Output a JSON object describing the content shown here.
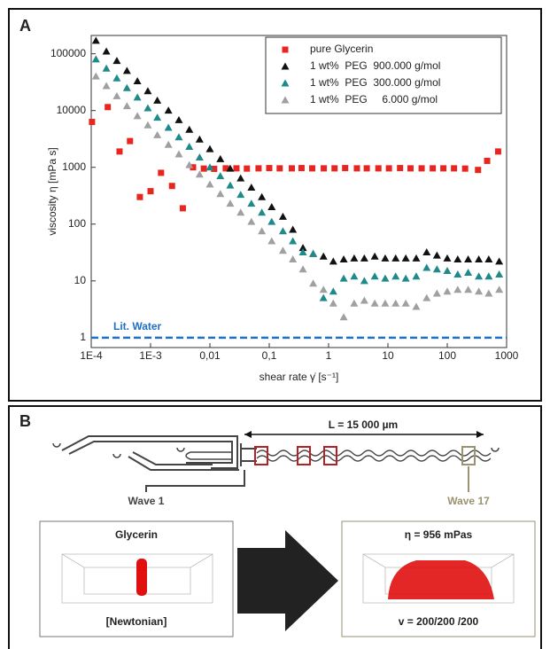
{
  "panels": {
    "a_label": "A",
    "b_label": "B"
  },
  "chart_data": {
    "type": "scatter",
    "log_x": true,
    "log_y": true,
    "grid": false,
    "legend_position": "top-right",
    "y_label": "viscosity η [mPa s]",
    "x_label": "shear rate γ̇ [s⁻¹]",
    "xlim": [
      0.0001,
      1000
    ],
    "ylim": [
      0.67,
      210000
    ],
    "xticks": [
      {
        "value": 0.0001,
        "label": "1E-4"
      },
      {
        "value": 0.001,
        "label": "1E-3"
      },
      {
        "value": 0.01,
        "label": "0,01"
      },
      {
        "value": 0.1,
        "label": "0,1"
      },
      1,
      10,
      100,
      1000
    ],
    "yticks": [
      1,
      10,
      100,
      1000,
      10000,
      100000
    ],
    "reference_line": {
      "value": 1,
      "label": "Lit. Water",
      "color": "#1f6fc4"
    },
    "series": [
      {
        "name": "pure Glycerin",
        "marker": "square",
        "color": "#e8261f",
        "x": [
          0.000103,
          0.00019,
          0.0003,
          0.00045,
          0.00066,
          0.001,
          0.0015,
          0.0023,
          0.0035,
          0.0052,
          0.0079,
          0.0118,
          0.0185,
          0.028,
          0.042,
          0.066,
          0.1,
          0.15,
          0.24,
          0.35,
          0.53,
          0.83,
          1.26,
          1.9,
          3,
          4.4,
          6.9,
          10.4,
          16,
          24,
          37,
          57,
          86,
          130,
          200,
          330,
          470,
          720
        ],
        "values": [
          6300,
          11500,
          1900,
          2900,
          300,
          380,
          800,
          470,
          190,
          1000,
          950,
          940,
          960,
          960,
          950,
          960,
          970,
          960,
          960,
          970,
          960,
          960,
          960,
          970,
          960,
          960,
          960,
          960,
          970,
          960,
          960,
          960,
          960,
          960,
          950,
          900,
          1300,
          1900
        ]
      },
      {
        "name": "1 wt%  PEG  900.000 g/mol",
        "marker": "triangle",
        "color": "#111111",
        "x": [
          0.00012,
          0.00018,
          0.00027,
          0.0004,
          0.0006,
          0.0009,
          0.0013,
          0.002,
          0.003,
          0.0045,
          0.0067,
          0.01,
          0.015,
          0.022,
          0.033,
          0.05,
          0.075,
          0.11,
          0.17,
          0.25,
          0.37,
          0.55,
          0.82,
          1.2,
          1.8,
          2.7,
          4,
          6,
          9,
          13.5,
          20,
          30,
          45,
          67,
          100,
          150,
          225,
          340,
          500,
          750
        ],
        "values": [
          170000,
          110000,
          75000,
          50000,
          33000,
          22000,
          15000,
          10000,
          6800,
          4600,
          3100,
          2100,
          1400,
          950,
          640,
          440,
          300,
          200,
          135,
          80,
          38,
          30,
          27,
          22,
          24,
          25,
          25,
          27,
          25,
          25,
          25,
          25,
          32,
          28,
          25,
          24,
          24,
          24,
          24,
          22
        ]
      },
      {
        "name": "1 wt%  PEG  300.000 g/mol",
        "marker": "triangle",
        "color": "#1f8a8a",
        "x": [
          0.00012,
          0.00018,
          0.00027,
          0.0004,
          0.0006,
          0.0009,
          0.0013,
          0.002,
          0.003,
          0.0045,
          0.0067,
          0.01,
          0.015,
          0.022,
          0.033,
          0.05,
          0.075,
          0.11,
          0.17,
          0.25,
          0.37,
          0.55,
          0.82,
          1.2,
          1.8,
          2.7,
          4,
          6,
          9,
          13.5,
          20,
          30,
          45,
          67,
          100,
          150,
          225,
          340,
          500,
          750
        ],
        "values": [
          80000,
          55000,
          37000,
          25000,
          17000,
          11000,
          7500,
          5000,
          3400,
          2300,
          1500,
          1000,
          700,
          480,
          330,
          230,
          160,
          110,
          75,
          50,
          32,
          30,
          5,
          6.5,
          11,
          12,
          10,
          12,
          11,
          12,
          11,
          12,
          17,
          16,
          15,
          13,
          14,
          12,
          12,
          13
        ]
      },
      {
        "name": "1 wt%  PEG     6.000 g/mol",
        "marker": "triangle",
        "color": "#a0a0a0",
        "x": [
          0.00012,
          0.00018,
          0.00027,
          0.0004,
          0.0006,
          0.0009,
          0.0013,
          0.002,
          0.003,
          0.0045,
          0.0067,
          0.01,
          0.015,
          0.022,
          0.033,
          0.05,
          0.075,
          0.11,
          0.17,
          0.25,
          0.37,
          0.55,
          0.82,
          1.2,
          1.8,
          2.7,
          4,
          6,
          9,
          13.5,
          20,
          30,
          45,
          67,
          100,
          150,
          225,
          340,
          500,
          750
        ],
        "values": [
          40000,
          27000,
          18000,
          12000,
          8000,
          5500,
          3700,
          2500,
          1700,
          1100,
          750,
          500,
          340,
          230,
          160,
          110,
          75,
          50,
          34,
          24,
          16,
          9,
          7,
          4,
          2.3,
          4,
          4.5,
          4,
          4,
          4,
          4,
          3.5,
          5,
          6,
          6.5,
          7,
          7,
          6.5,
          6,
          7
        ]
      }
    ]
  },
  "diagram": {
    "length_label": "L = 15 000 µm",
    "wave_left": "Wave 1",
    "wave_right": "Wave 17",
    "left_box": {
      "title": "Glycerin",
      "caption": "[Newtonian]"
    },
    "right_box": {
      "title": "η = 956 mPas",
      "caption": "v = 200/200 /200"
    }
  }
}
